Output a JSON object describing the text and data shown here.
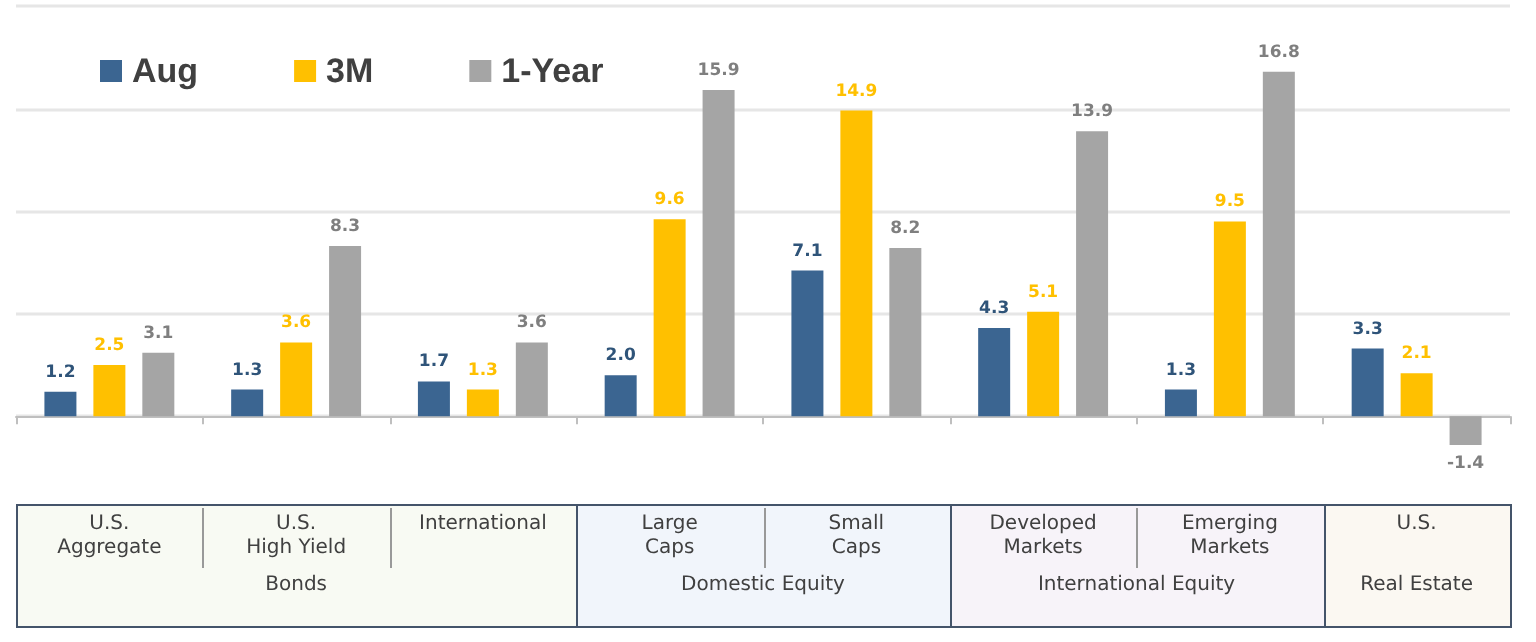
{
  "chart_data": {
    "type": "bar",
    "categories": [
      "U.S.\nAggregate",
      "U.S.\nHigh Yield",
      "International",
      "Large\nCaps",
      "Small\nCaps",
      "Developed\nMarkets",
      "Emerging\nMarkets",
      "U.S."
    ],
    "series": [
      {
        "name": "Aug",
        "color": "#3b6591",
        "values": [
          1.2,
          1.3,
          1.7,
          2.0,
          7.1,
          4.3,
          1.3,
          3.3
        ],
        "value_labels": [
          "1.2",
          "1.3",
          "1.7",
          "2.0",
          "7.1",
          "4.3",
          "1.3",
          "3.3"
        ]
      },
      {
        "name": "3M",
        "color": "#ffc000",
        "values": [
          2.5,
          3.6,
          1.3,
          9.6,
          14.9,
          5.1,
          9.5,
          2.1
        ],
        "value_labels": [
          "2.5",
          "3.6",
          "1.3",
          "9.6",
          "14.9",
          "5.1",
          "9.5",
          "2.1"
        ]
      },
      {
        "name": "1-Year",
        "color": "#a5a5a5",
        "values": [
          3.1,
          8.3,
          3.6,
          15.9,
          8.2,
          13.9,
          16.8,
          -1.4
        ],
        "value_labels": [
          "3.1",
          "8.3",
          "3.6",
          "15.9",
          "8.2",
          "13.9",
          "16.8",
          "-1.4"
        ]
      }
    ],
    "yticks": [
      {
        "value": 0,
        "label": null
      },
      {
        "value": 5,
        "label": null
      },
      {
        "value": 10,
        "label": null
      },
      {
        "value": 15,
        "label": null
      },
      {
        "value": 20,
        "label": null
      }
    ],
    "tick_labels": "x",
    "grid": "y",
    "legend": "top left",
    "annotations": [
      "Bonds",
      "Domestic Equity",
      "International Equity",
      "Real Estate"
    ]
  }
}
